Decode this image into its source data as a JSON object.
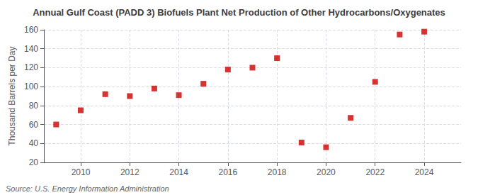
{
  "chart_data": {
    "type": "scatter",
    "title": "Annual Gulf Coast (PADD 3) Biofuels Plant Net Production of Other Hydrocarbons/Oxygenates",
    "ylabel": "Thousand Barrels per Day",
    "source": "Source: U.S. Energy Information Administration",
    "x": [
      2009,
      2010,
      2011,
      2012,
      2013,
      2014,
      2015,
      2016,
      2017,
      2018,
      2019,
      2020,
      2021,
      2022,
      2023,
      2024
    ],
    "values": [
      60,
      75,
      92,
      90,
      98,
      91,
      103,
      118,
      120,
      130,
      41,
      36,
      67,
      105,
      155,
      158
    ],
    "color": "#cc0000",
    "marker": "square",
    "xlim": [
      2008.5,
      2025.5
    ],
    "xticks": [
      2010,
      2012,
      2014,
      2016,
      2018,
      2020,
      2022,
      2024
    ],
    "ylim": [
      20,
      160
    ],
    "yticks": [
      20,
      40,
      60,
      80,
      100,
      120,
      140,
      160
    ],
    "grid": true
  }
}
